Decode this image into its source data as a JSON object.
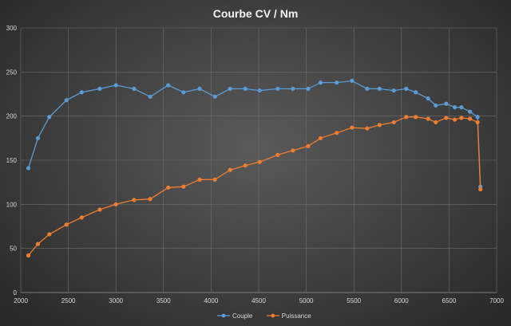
{
  "chart_data": {
    "type": "line",
    "title": "Courbe  CV / Nm",
    "xlim": [
      2000,
      7000
    ],
    "ylim": [
      0,
      300
    ],
    "x_ticks": [
      2000,
      2500,
      3000,
      3500,
      4000,
      4500,
      5000,
      5500,
      6000,
      6500,
      7000
    ],
    "y_ticks": [
      0,
      50,
      100,
      150,
      200,
      250,
      300
    ],
    "grid": true,
    "legend_position": "bottom",
    "series": [
      {
        "name": "Couple",
        "color": "#5b9bd5",
        "points": [
          [
            2080,
            141
          ],
          [
            2180,
            175
          ],
          [
            2300,
            199
          ],
          [
            2480,
            218
          ],
          [
            2640,
            227
          ],
          [
            2830,
            231
          ],
          [
            3000,
            235
          ],
          [
            3190,
            231
          ],
          [
            3360,
            222
          ],
          [
            3550,
            235
          ],
          [
            3710,
            227
          ],
          [
            3880,
            231
          ],
          [
            4040,
            222
          ],
          [
            4200,
            231
          ],
          [
            4360,
            231
          ],
          [
            4510,
            229
          ],
          [
            4700,
            231
          ],
          [
            4860,
            231
          ],
          [
            5020,
            231
          ],
          [
            5150,
            238
          ],
          [
            5320,
            238
          ],
          [
            5480,
            240
          ],
          [
            5640,
            231
          ],
          [
            5770,
            231
          ],
          [
            5920,
            229
          ],
          [
            6050,
            231
          ],
          [
            6150,
            227
          ],
          [
            6280,
            220
          ],
          [
            6360,
            212
          ],
          [
            6470,
            214
          ],
          [
            6560,
            210
          ],
          [
            6630,
            210
          ],
          [
            6720,
            205
          ],
          [
            6800,
            199
          ],
          [
            6830,
            120
          ]
        ]
      },
      {
        "name": "Puissance",
        "color": "#ed7d31",
        "points": [
          [
            2080,
            42
          ],
          [
            2180,
            55
          ],
          [
            2300,
            66
          ],
          [
            2480,
            77
          ],
          [
            2640,
            85
          ],
          [
            2830,
            94
          ],
          [
            3000,
            100
          ],
          [
            3190,
            105
          ],
          [
            3360,
            106
          ],
          [
            3550,
            119
          ],
          [
            3710,
            120
          ],
          [
            3880,
            128
          ],
          [
            4040,
            128
          ],
          [
            4200,
            139
          ],
          [
            4360,
            144
          ],
          [
            4510,
            148
          ],
          [
            4700,
            156
          ],
          [
            4860,
            161
          ],
          [
            5020,
            166
          ],
          [
            5150,
            175
          ],
          [
            5320,
            181
          ],
          [
            5480,
            187
          ],
          [
            5640,
            186
          ],
          [
            5770,
            190
          ],
          [
            5920,
            193
          ],
          [
            6050,
            199
          ],
          [
            6150,
            199
          ],
          [
            6280,
            197
          ],
          [
            6360,
            193
          ],
          [
            6470,
            198
          ],
          [
            6560,
            196
          ],
          [
            6630,
            198
          ],
          [
            6720,
            197
          ],
          [
            6800,
            193
          ],
          [
            6830,
            117
          ]
        ]
      }
    ]
  }
}
